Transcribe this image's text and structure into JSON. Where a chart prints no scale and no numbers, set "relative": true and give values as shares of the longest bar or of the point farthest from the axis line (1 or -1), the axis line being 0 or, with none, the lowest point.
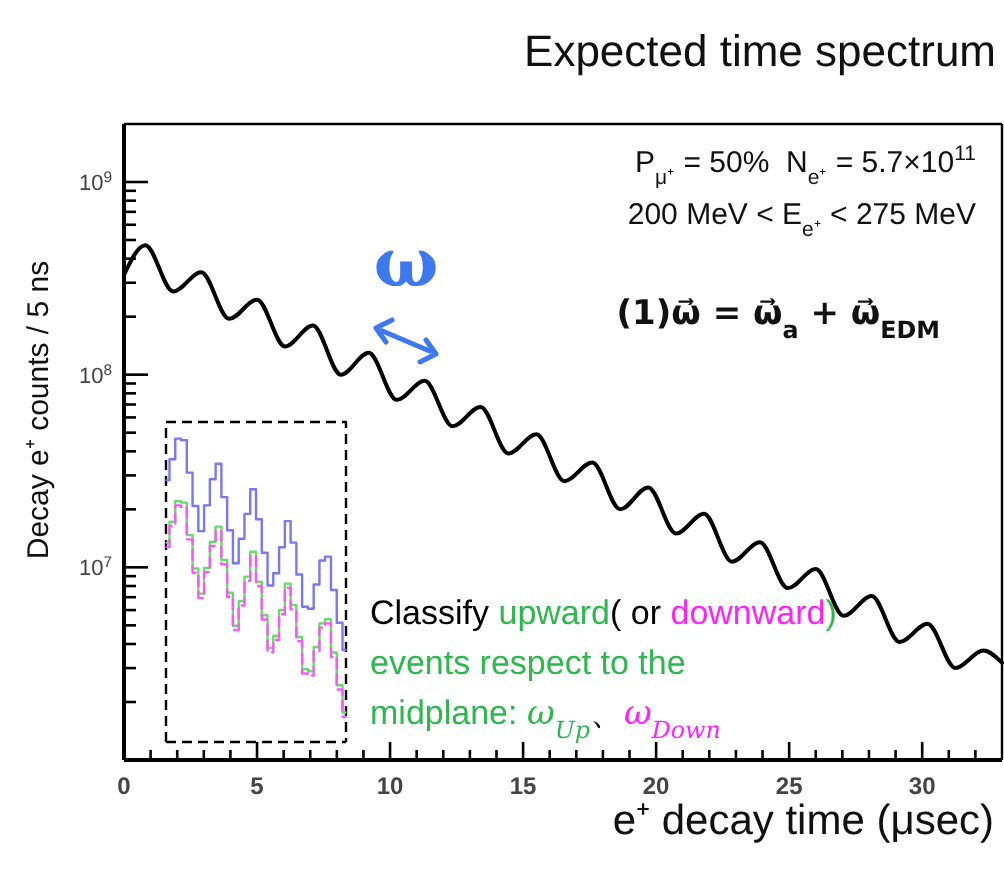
{
  "chart_data": [
    {
      "type": "line",
      "title": "Expected time spectrum",
      "xlabel": "e⁺ decay time (μsec)",
      "ylabel": "Decay e⁺ counts / 5 ns",
      "x": [
        0,
        0.8,
        1.85,
        2.9,
        3.95,
        5.0,
        6.05,
        7.1,
        8.15,
        9.2,
        10.25,
        11.3,
        12.35,
        13.4,
        14.45,
        15.5,
        16.55,
        17.6,
        18.65,
        19.7,
        20.75,
        21.8,
        22.85,
        23.9,
        24.95,
        26.0,
        27.05,
        28.1,
        29.15,
        30.2,
        31.25,
        32.3,
        33
      ],
      "series": [
        {
          "color": "#000000",
          "values": [
            330000000,
            470000000,
            270000000,
            340000000,
            195000000,
            245000000,
            140000000,
            180000000,
            100000000,
            130000000,
            74000000,
            93000000,
            54000000,
            68000000,
            39000000,
            49000000,
            28000000,
            35000000,
            20000000,
            26000000,
            15000000,
            19000000,
            10700000,
            13500000,
            7800000,
            9800000,
            5600000,
            7100000,
            4100000,
            5100000,
            3000000,
            3700000,
            3200000
          ]
        }
      ],
      "log": "y",
      "xlim": [
        0,
        33
      ],
      "ylim": [
        1000000,
        2000000000
      ],
      "xticks": [
        0,
        {
          "value": 1,
          "label": null
        },
        {
          "value": 2,
          "label": null
        },
        {
          "value": 3,
          "label": null
        },
        {
          "value": 4,
          "label": null
        },
        5,
        {
          "value": 6,
          "label": null
        },
        {
          "value": 7,
          "label": null
        },
        {
          "value": 8,
          "label": null
        },
        {
          "value": 9,
          "label": null
        },
        10,
        {
          "value": 11,
          "label": null
        },
        {
          "value": 12,
          "label": null
        },
        {
          "value": 13,
          "label": null
        },
        {
          "value": 14,
          "label": null
        },
        15,
        {
          "value": 16,
          "label": null
        },
        {
          "value": 17,
          "label": null
        },
        {
          "value": 18,
          "label": null
        },
        {
          "value": 19,
          "label": null
        },
        20,
        {
          "value": 21,
          "label": null
        },
        {
          "value": 22,
          "label": null
        },
        {
          "value": 23,
          "label": null
        },
        {
          "value": 24,
          "label": null
        },
        25,
        {
          "value": 26,
          "label": null
        },
        {
          "value": 27,
          "label": null
        },
        {
          "value": 28,
          "label": null
        },
        {
          "value": 29,
          "label": null
        },
        30,
        {
          "value": 31,
          "label": null
        },
        {
          "value": 32,
          "label": null
        }
      ],
      "yticks": [
        {
          "value": 2000000,
          "label": null
        },
        {
          "value": 3000000,
          "label": null
        },
        {
          "value": 4000000,
          "label": null
        },
        {
          "value": 5000000,
          "label": null
        },
        {
          "value": 6000000,
          "label": null
        },
        {
          "value": 7000000,
          "label": null
        },
        {
          "value": 8000000,
          "label": null
        },
        {
          "value": 9000000,
          "label": null
        },
        {
          "value": 10000000,
          "label": "10$^{7}$"
        },
        {
          "value": 20000000,
          "label": null
        },
        {
          "value": 30000000,
          "label": null
        },
        {
          "value": 40000000,
          "label": null
        },
        {
          "value": 50000000,
          "label": null
        },
        {
          "value": 60000000,
          "label": null
        },
        {
          "value": 70000000,
          "label": null
        },
        {
          "value": 80000000,
          "label": null
        },
        {
          "value": 90000000,
          "label": null
        },
        {
          "value": 100000000,
          "label": "10$^{8}$"
        },
        {
          "value": 200000000,
          "label": null
        },
        {
          "value": 300000000,
          "label": null
        },
        {
          "value": 400000000,
          "label": null
        },
        {
          "value": 500000000,
          "label": null
        },
        {
          "value": 600000000,
          "label": null
        },
        {
          "value": 700000000,
          "label": null
        },
        {
          "value": 800000000,
          "label": null
        },
        {
          "value": 900000000,
          "label": null
        },
        {
          "value": 1000000000,
          "label": "10$^{9}$"
        }
      ],
      "annotations": [
        "P$_{μ⁺}$ = 50%  N$_{e⁺}$ = 5.7×10$^{11}$",
        "200 MeV < E$_{e⁺}$ < 275 MeV",
        "ω",
        "(1)ω⃗ = ω⃗$_{a}$ + ω⃗$_{EDM}$",
        "Classify ",
        "upward",
        "( or ",
        "downward",
        ")",
        "events respect to the",
        "midplane: ",
        "ω$_{Up}$",
        "、",
        "ω$_{Down}$"
      ]
    },
    {
      "type": "step",
      "relative": true,
      "categories": [
        null,
        null,
        null,
        null,
        null,
        null,
        null,
        null,
        null,
        null,
        null,
        null,
        null,
        null,
        null,
        null,
        null,
        null,
        null,
        null,
        null,
        null,
        null,
        null,
        null,
        null,
        null,
        null,
        null,
        null,
        null,
        null
      ],
      "series": [
        {
          "color": "#7878f0",
          "values": [
            0.863,
            0.932,
            1,
            0.995,
            0.888,
            0.778,
            0.695,
            0.78,
            0.866,
            0.917,
            0.807,
            0.698,
            0.589,
            0.67,
            0.752,
            0.833,
            0.734,
            0.624,
            0.516,
            0.556,
            0.642,
            0.728,
            0.657,
            0.552,
            0.446,
            0.439,
            0.519,
            0.598,
            0.611,
            0.501,
            0.393,
            0.303
          ]
        },
        {
          "color": "#66dd66",
          "values": [
            0.657,
            0.726,
            0.794,
            0.789,
            0.682,
            0.572,
            0.489,
            0.574,
            0.66,
            0.71,
            0.6,
            0.492,
            0.383,
            0.464,
            0.545,
            0.627,
            0.528,
            0.418,
            0.31,
            0.35,
            0.435,
            0.522,
            0.451,
            0.346,
            0.24,
            0.233,
            0.313,
            0.391,
            0.405,
            0.295,
            0.187,
            0.097
          ]
        },
        {
          "color": "#ff55ff",
          "line_style": "dashed",
          "values": [
            0.643,
            0.712,
            0.78,
            0.775,
            0.668,
            0.558,
            0.475,
            0.56,
            0.646,
            0.696,
            0.586,
            0.478,
            0.369,
            0.45,
            0.531,
            0.613,
            0.514,
            0.404,
            0.296,
            0.336,
            0.421,
            0.508,
            0.437,
            0.332,
            0.226,
            0.219,
            0.299,
            0.377,
            0.391,
            0.281,
            0.173,
            0.083
          ]
        }
      ]
    }
  ]
}
